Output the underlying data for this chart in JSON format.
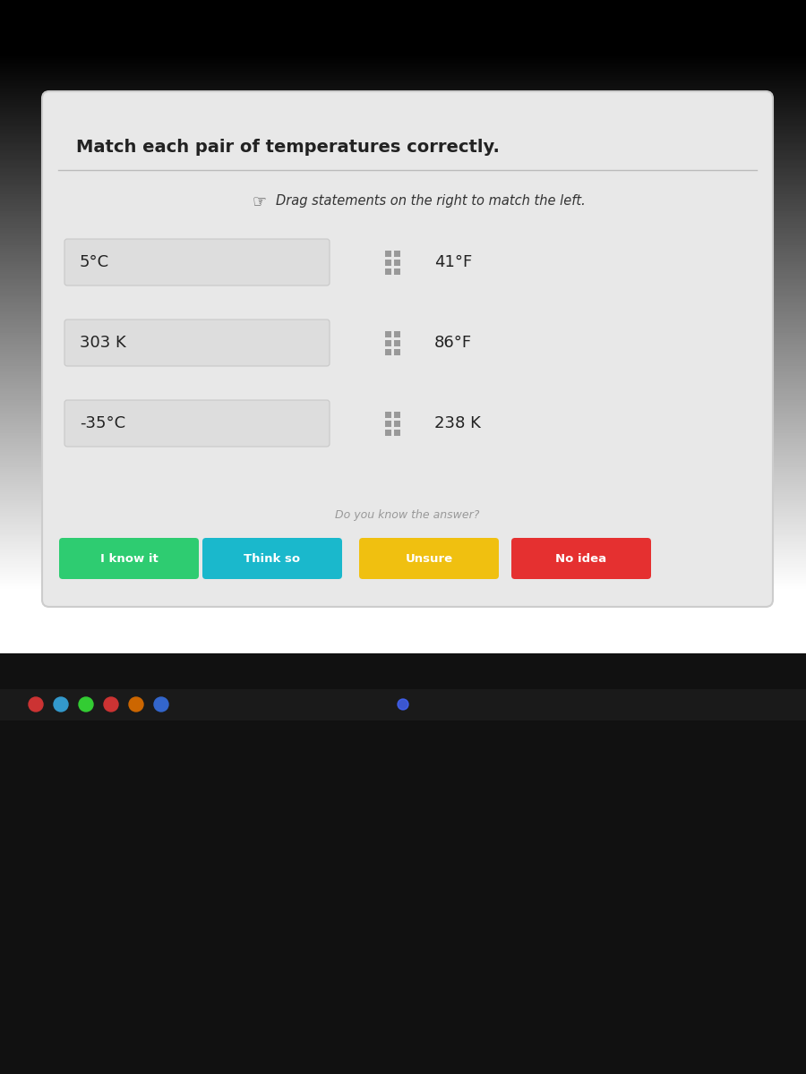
{
  "title": "Match each pair of temperatures correctly.",
  "subtitle": "Drag statements on the right to match the left.",
  "left_items": [
    "5°C",
    "303 K",
    "-35°C"
  ],
  "right_items": [
    "41°F",
    "86°F",
    "238 K"
  ],
  "do_you_know": "Do you know the answer?",
  "buttons": [
    "I know it",
    "Think so",
    "Unsure",
    "No idea"
  ],
  "button_colors": [
    "#2ecc71",
    "#1ab8cc",
    "#f0c010",
    "#e53030"
  ],
  "button_text_color": "#ffffff",
  "outer_bg_top": "#888888",
  "outer_bg_bottom": "#111111",
  "panel_bg": "#e8e8e8",
  "panel_border": "#cccccc",
  "left_box_color": "#dddddd",
  "right_box_color": "#dddddd",
  "title_fontsize": 14,
  "subtitle_fontsize": 10.5,
  "item_fontsize": 13,
  "button_fontsize": 9.5,
  "line_color": "#bbbbbb",
  "text_color": "#222222",
  "subtitle_color": "#333333",
  "do_you_know_color": "#999999"
}
